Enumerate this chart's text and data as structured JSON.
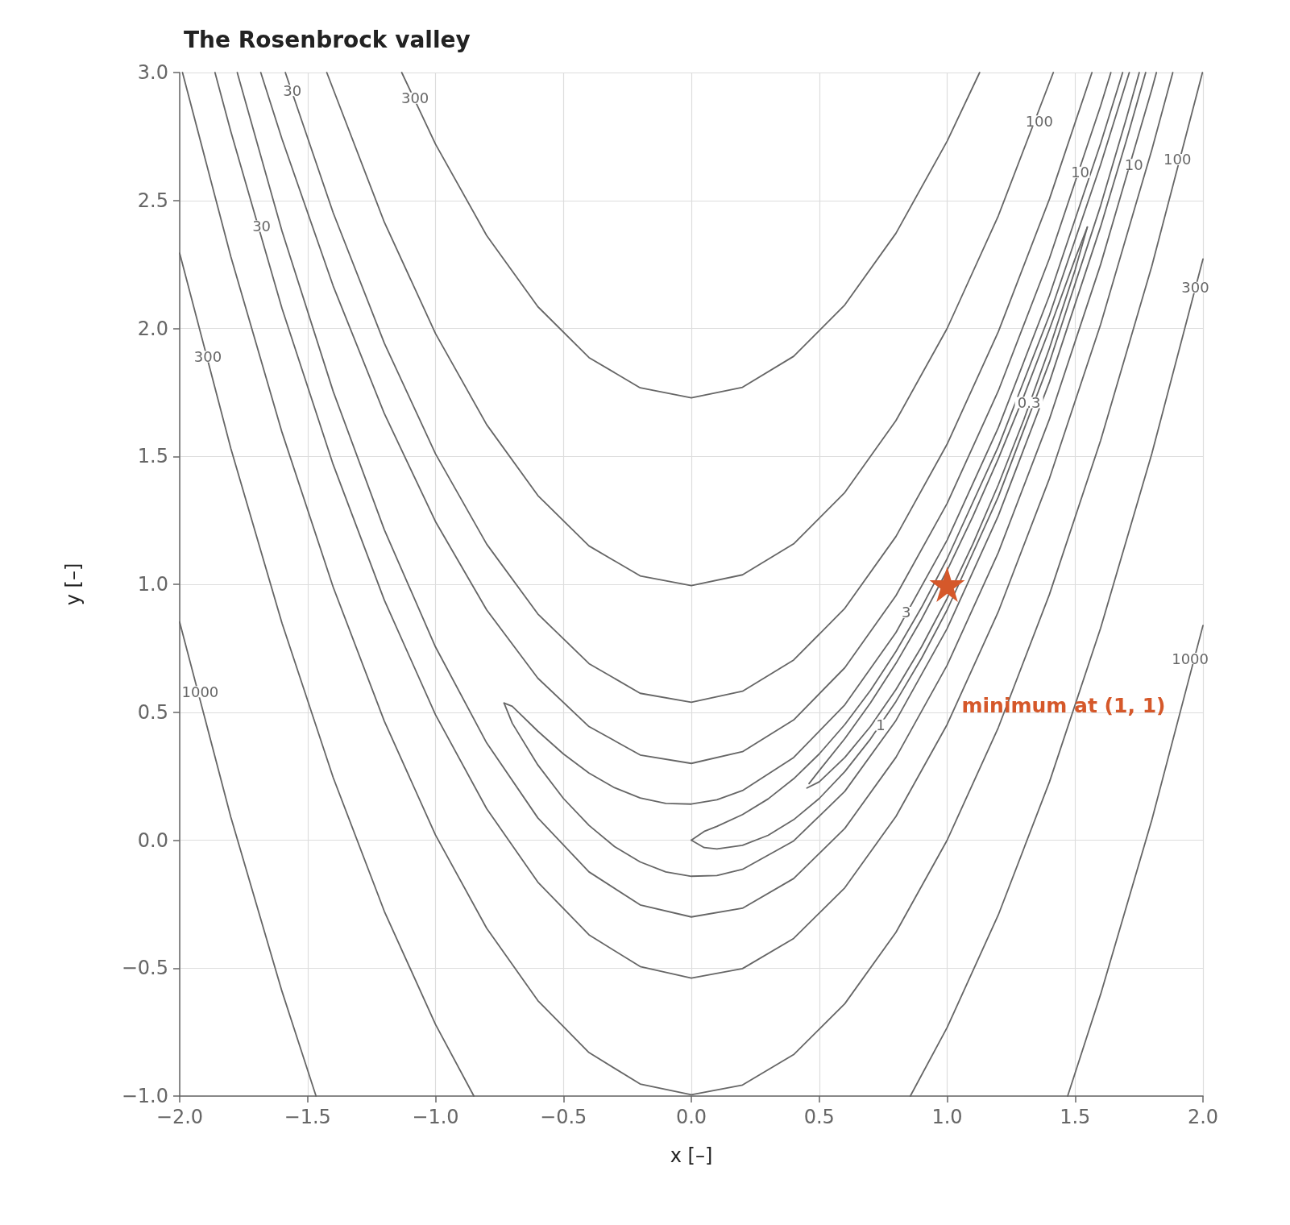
{
  "chart_data": {
    "type": "line",
    "title": "The Rosenbrock valley",
    "xlabel": "x [–]",
    "ylabel": "y [–]",
    "xlim": [
      -2,
      2
    ],
    "ylim": [
      -1,
      3
    ],
    "xticks": [
      {
        "value": -2,
        "label": "−2.0"
      },
      {
        "value": -1.5,
        "label": "−1.5"
      },
      {
        "value": -1,
        "label": "−1.0"
      },
      {
        "value": -0.5,
        "label": "−0.5"
      },
      {
        "value": 0,
        "label": "0.0"
      },
      {
        "value": 0.5,
        "label": "0.5"
      },
      {
        "value": 1,
        "label": "1.0"
      },
      {
        "value": 1.5,
        "label": "1.5"
      },
      {
        "value": 2,
        "label": "2.0"
      }
    ],
    "yticks": [
      {
        "value": -1,
        "label": "−1.0"
      },
      {
        "value": -0.5,
        "label": "−0.5"
      },
      {
        "value": 0,
        "label": "0.0"
      },
      {
        "value": 0.5,
        "label": "0.5"
      },
      {
        "value": 1,
        "label": "1.0"
      },
      {
        "value": 1.5,
        "label": "1.5"
      },
      {
        "value": 2,
        "label": "2.0"
      },
      {
        "value": 2.5,
        "label": "2.5"
      },
      {
        "value": 3,
        "label": "3.0"
      }
    ],
    "grid": true,
    "line_style": "solid",
    "series": [
      {
        "color": "#666666",
        "x": [
          0.452,
          0.5,
          0.6,
          0.7,
          0.8,
          0.9,
          1.0,
          1.1,
          1.2,
          1.3,
          1.4,
          1.5,
          1.548
        ],
        "values": [
          0.204,
          0.228,
          0.323,
          0.444,
          0.589,
          0.756,
          0.945,
          1.156,
          1.389,
          1.644,
          1.923,
          2.228,
          2.396
        ]
      },
      {
        "color": "#666666",
        "x": [
          0.46,
          0.5,
          0.6,
          0.7,
          0.8,
          0.9,
          1.0,
          1.1,
          1.2,
          1.3,
          1.4,
          1.5,
          1.548
        ],
        "values": [
          0.221,
          0.272,
          0.397,
          0.536,
          0.691,
          0.864,
          1.055,
          1.264,
          1.491,
          1.736,
          1.997,
          2.272,
          2.396
        ]
      },
      {
        "color": "#666666",
        "x": [
          0,
          0.05,
          0.1,
          0.2,
          0.3,
          0.4,
          0.5,
          0.6,
          0.7,
          0.8,
          0.9,
          1.0,
          1.2,
          1.4,
          1.6,
          1.7,
          1.751
        ],
        "values": [
          0,
          -0.029,
          -0.034,
          -0.02,
          0.019,
          0.08,
          0.163,
          0.268,
          0.395,
          0.542,
          0.711,
          0.9,
          1.342,
          1.868,
          2.48,
          2.819,
          3.0
        ]
      },
      {
        "color": "#666666",
        "x": [
          0,
          0.05,
          0.1,
          0.2,
          0.3,
          0.4,
          0.5,
          0.6,
          0.7,
          0.8,
          0.9,
          1.0,
          1.2,
          1.4,
          1.6,
          1.712
        ],
        "values": [
          0,
          0.034,
          0.054,
          0.1,
          0.161,
          0.24,
          0.337,
          0.452,
          0.585,
          0.738,
          0.91,
          1.1,
          1.538,
          2.052,
          2.64,
          3.0
        ]
      },
      {
        "color": "#666666",
        "x": [
          -0.732,
          -0.7,
          -0.6,
          -0.5,
          -0.4,
          -0.3,
          -0.2,
          -0.1,
          0,
          0.1,
          0.2,
          0.4,
          0.6,
          0.8,
          1.0,
          1.2,
          1.4,
          1.6,
          1.7,
          1.776
        ],
        "values": [
          0.536,
          0.457,
          0.294,
          0.163,
          0.058,
          -0.025,
          -0.085,
          -0.124,
          -0.141,
          -0.138,
          -0.114,
          -0.003,
          0.191,
          0.468,
          0.827,
          1.268,
          1.791,
          2.398,
          2.732,
          3.0
        ]
      },
      {
        "color": "#666666",
        "x": [
          -0.732,
          -0.7,
          -0.6,
          -0.5,
          -0.4,
          -0.3,
          -0.2,
          -0.1,
          0,
          0.1,
          0.2,
          0.4,
          0.6,
          0.8,
          1.0,
          1.2,
          1.4,
          1.6,
          1.686
        ],
        "values": [
          0.536,
          0.523,
          0.426,
          0.337,
          0.262,
          0.205,
          0.165,
          0.144,
          0.141,
          0.158,
          0.194,
          0.323,
          0.529,
          0.812,
          1.173,
          1.612,
          2.129,
          2.723,
          3.0
        ]
      },
      {
        "color": "#666666",
        "x": [
          -1.775,
          -1.6,
          -1.4,
          -1.2,
          -1.0,
          -0.8,
          -0.6,
          -0.4,
          -0.2,
          0,
          0.2,
          0.4,
          0.6,
          0.8,
          1.0,
          1.2,
          1.4,
          1.6,
          1.8,
          1.818
        ],
        "values": [
          3.0,
          2.38,
          1.754,
          1.213,
          0.755,
          0.38,
          0.087,
          -0.124,
          -0.253,
          -0.3,
          -0.266,
          -0.15,
          0.046,
          0.324,
          0.684,
          1.124,
          1.646,
          2.25,
          2.934,
          3.0
        ]
      },
      {
        "color": "#666666",
        "x": [
          -1.683,
          -1.6,
          -1.4,
          -1.2,
          -1.0,
          -0.8,
          -0.6,
          -0.4,
          -0.2,
          0,
          0.2,
          0.4,
          0.6,
          0.8,
          1.0,
          1.2,
          1.4,
          1.6,
          1.64
        ],
        "values": [
          3.0,
          2.74,
          2.166,
          1.667,
          1.245,
          0.9,
          0.633,
          0.444,
          0.333,
          0.3,
          0.346,
          0.47,
          0.674,
          0.956,
          1.316,
          1.756,
          2.274,
          2.87,
          3.0
        ]
      },
      {
        "color": "#666666",
        "x": [
          -1.862,
          -1.8,
          -1.6,
          -1.4,
          -1.2,
          -1.0,
          -0.8,
          -0.6,
          -0.4,
          -0.2,
          0,
          0.2,
          0.4,
          0.6,
          0.8,
          1.0,
          1.2,
          1.4,
          1.6,
          1.8,
          1.882
        ],
        "values": [
          3.0,
          2.769,
          2.078,
          1.468,
          0.938,
          0.49,
          0.123,
          -0.164,
          -0.37,
          -0.494,
          -0.539,
          -0.502,
          -0.384,
          -0.186,
          0.093,
          0.452,
          0.893,
          1.414,
          2.016,
          2.698,
          3.0
        ]
      },
      {
        "color": "#666666",
        "x": [
          -1.587,
          -1.4,
          -1.2,
          -1.0,
          -0.8,
          -0.6,
          -0.4,
          -0.2,
          0,
          0.2,
          0.4,
          0.6,
          0.8,
          1.0,
          1.2,
          1.4,
          1.566
        ],
        "values": [
          3.0,
          2.452,
          1.942,
          1.51,
          1.157,
          0.884,
          0.69,
          0.574,
          0.539,
          0.582,
          0.704,
          0.906,
          1.187,
          1.548,
          1.987,
          2.506,
          3.0
        ]
      },
      {
        "color": "#666666",
        "x": [
          -1.989,
          -1.8,
          -1.6,
          -1.4,
          -1.2,
          -1.0,
          -0.8,
          -0.6,
          -0.4,
          -0.2,
          0,
          0.2,
          0.4,
          0.6,
          0.8,
          1.0,
          1.2,
          1.4,
          1.6,
          1.8,
          1.998
        ],
        "values": [
          3.0,
          2.28,
          1.594,
          0.989,
          0.465,
          0.02,
          -0.344,
          -0.627,
          -0.83,
          -0.953,
          -0.995,
          -0.957,
          -0.838,
          -0.639,
          -0.36,
          0,
          0.44,
          0.961,
          1.562,
          2.243,
          3.0
        ]
      },
      {
        "color": "#666666",
        "x": [
          -1.425,
          -1.2,
          -1.0,
          -0.8,
          -0.6,
          -0.4,
          -0.2,
          0,
          0.2,
          0.4,
          0.6,
          0.8,
          1.0,
          1.2,
          1.415
        ],
        "values": [
          3.0,
          2.415,
          1.98,
          1.624,
          1.347,
          1.15,
          1.033,
          0.995,
          1.037,
          1.158,
          1.359,
          1.64,
          2.0,
          2.44,
          3.0
        ]
      },
      {
        "color": "#666666",
        "x": [
          -2,
          -1.8,
          -1.6,
          -1.4,
          -1.2,
          -1.0,
          -0.85
        ],
        "values": [
          2.294,
          1.531,
          0.848,
          0.245,
          -0.278,
          -0.72,
          -1.0
        ]
      },
      {
        "color": "#666666",
        "x": [
          0.856,
          1.0,
          1.2,
          1.4,
          1.6,
          1.8,
          2.0
        ],
        "values": [
          -1.0,
          -0.732,
          -0.292,
          0.228,
          0.829,
          1.51,
          2.271
        ]
      },
      {
        "color": "#666666",
        "x": [
          -1.132,
          -1.0,
          -0.8,
          -0.6,
          -0.4,
          -0.2,
          0,
          0.2,
          0.4,
          0.6,
          0.8,
          1.0,
          1.127
        ],
        "values": [
          3.0,
          2.72,
          2.363,
          2.085,
          1.886,
          1.768,
          1.729,
          1.77,
          1.891,
          2.092,
          2.372,
          2.732,
          3.0
        ]
      },
      {
        "color": "#666666",
        "x": [
          -2,
          -1.8,
          -1.6,
          -1.467
        ],
        "values": [
          0.852,
          0.09,
          -0.591,
          -1.0
        ]
      },
      {
        "color": "#666666",
        "x": [
          1.471,
          1.6,
          1.8,
          2.0
        ],
        "values": [
          -1.0,
          -0.602,
          0.079,
          0.839
        ]
      },
      {
        "type": "scatter",
        "name": "minimum at (1, 1)",
        "color": "#d5582a",
        "marker": "star",
        "x": [
          1
        ],
        "values": [
          1
        ]
      }
    ],
    "annotations": [
      {
        "text": "0.3",
        "x": 1.32,
        "y": 1.71
      },
      {
        "text": "1",
        "x": 0.74,
        "y": 0.45
      },
      {
        "text": "3",
        "x": 0.84,
        "y": 0.89
      },
      {
        "text": "10",
        "x": 1.52,
        "y": 2.61
      },
      {
        "text": "10",
        "x": 1.73,
        "y": 2.64
      },
      {
        "text": "30",
        "x": -1.56,
        "y": 2.93
      },
      {
        "text": "30",
        "x": -1.68,
        "y": 2.4
      },
      {
        "text": "100",
        "x": 1.36,
        "y": 2.81
      },
      {
        "text": "100",
        "x": 1.9,
        "y": 2.66
      },
      {
        "text": "300",
        "x": -1.08,
        "y": 2.9
      },
      {
        "text": "300",
        "x": -1.89,
        "y": 1.89
      },
      {
        "text": "300",
        "x": 1.97,
        "y": 2.16
      },
      {
        "text": "1000",
        "x": -1.92,
        "y": 0.58
      },
      {
        "text": "1000",
        "x": 1.95,
        "y": 0.71
      }
    ]
  }
}
